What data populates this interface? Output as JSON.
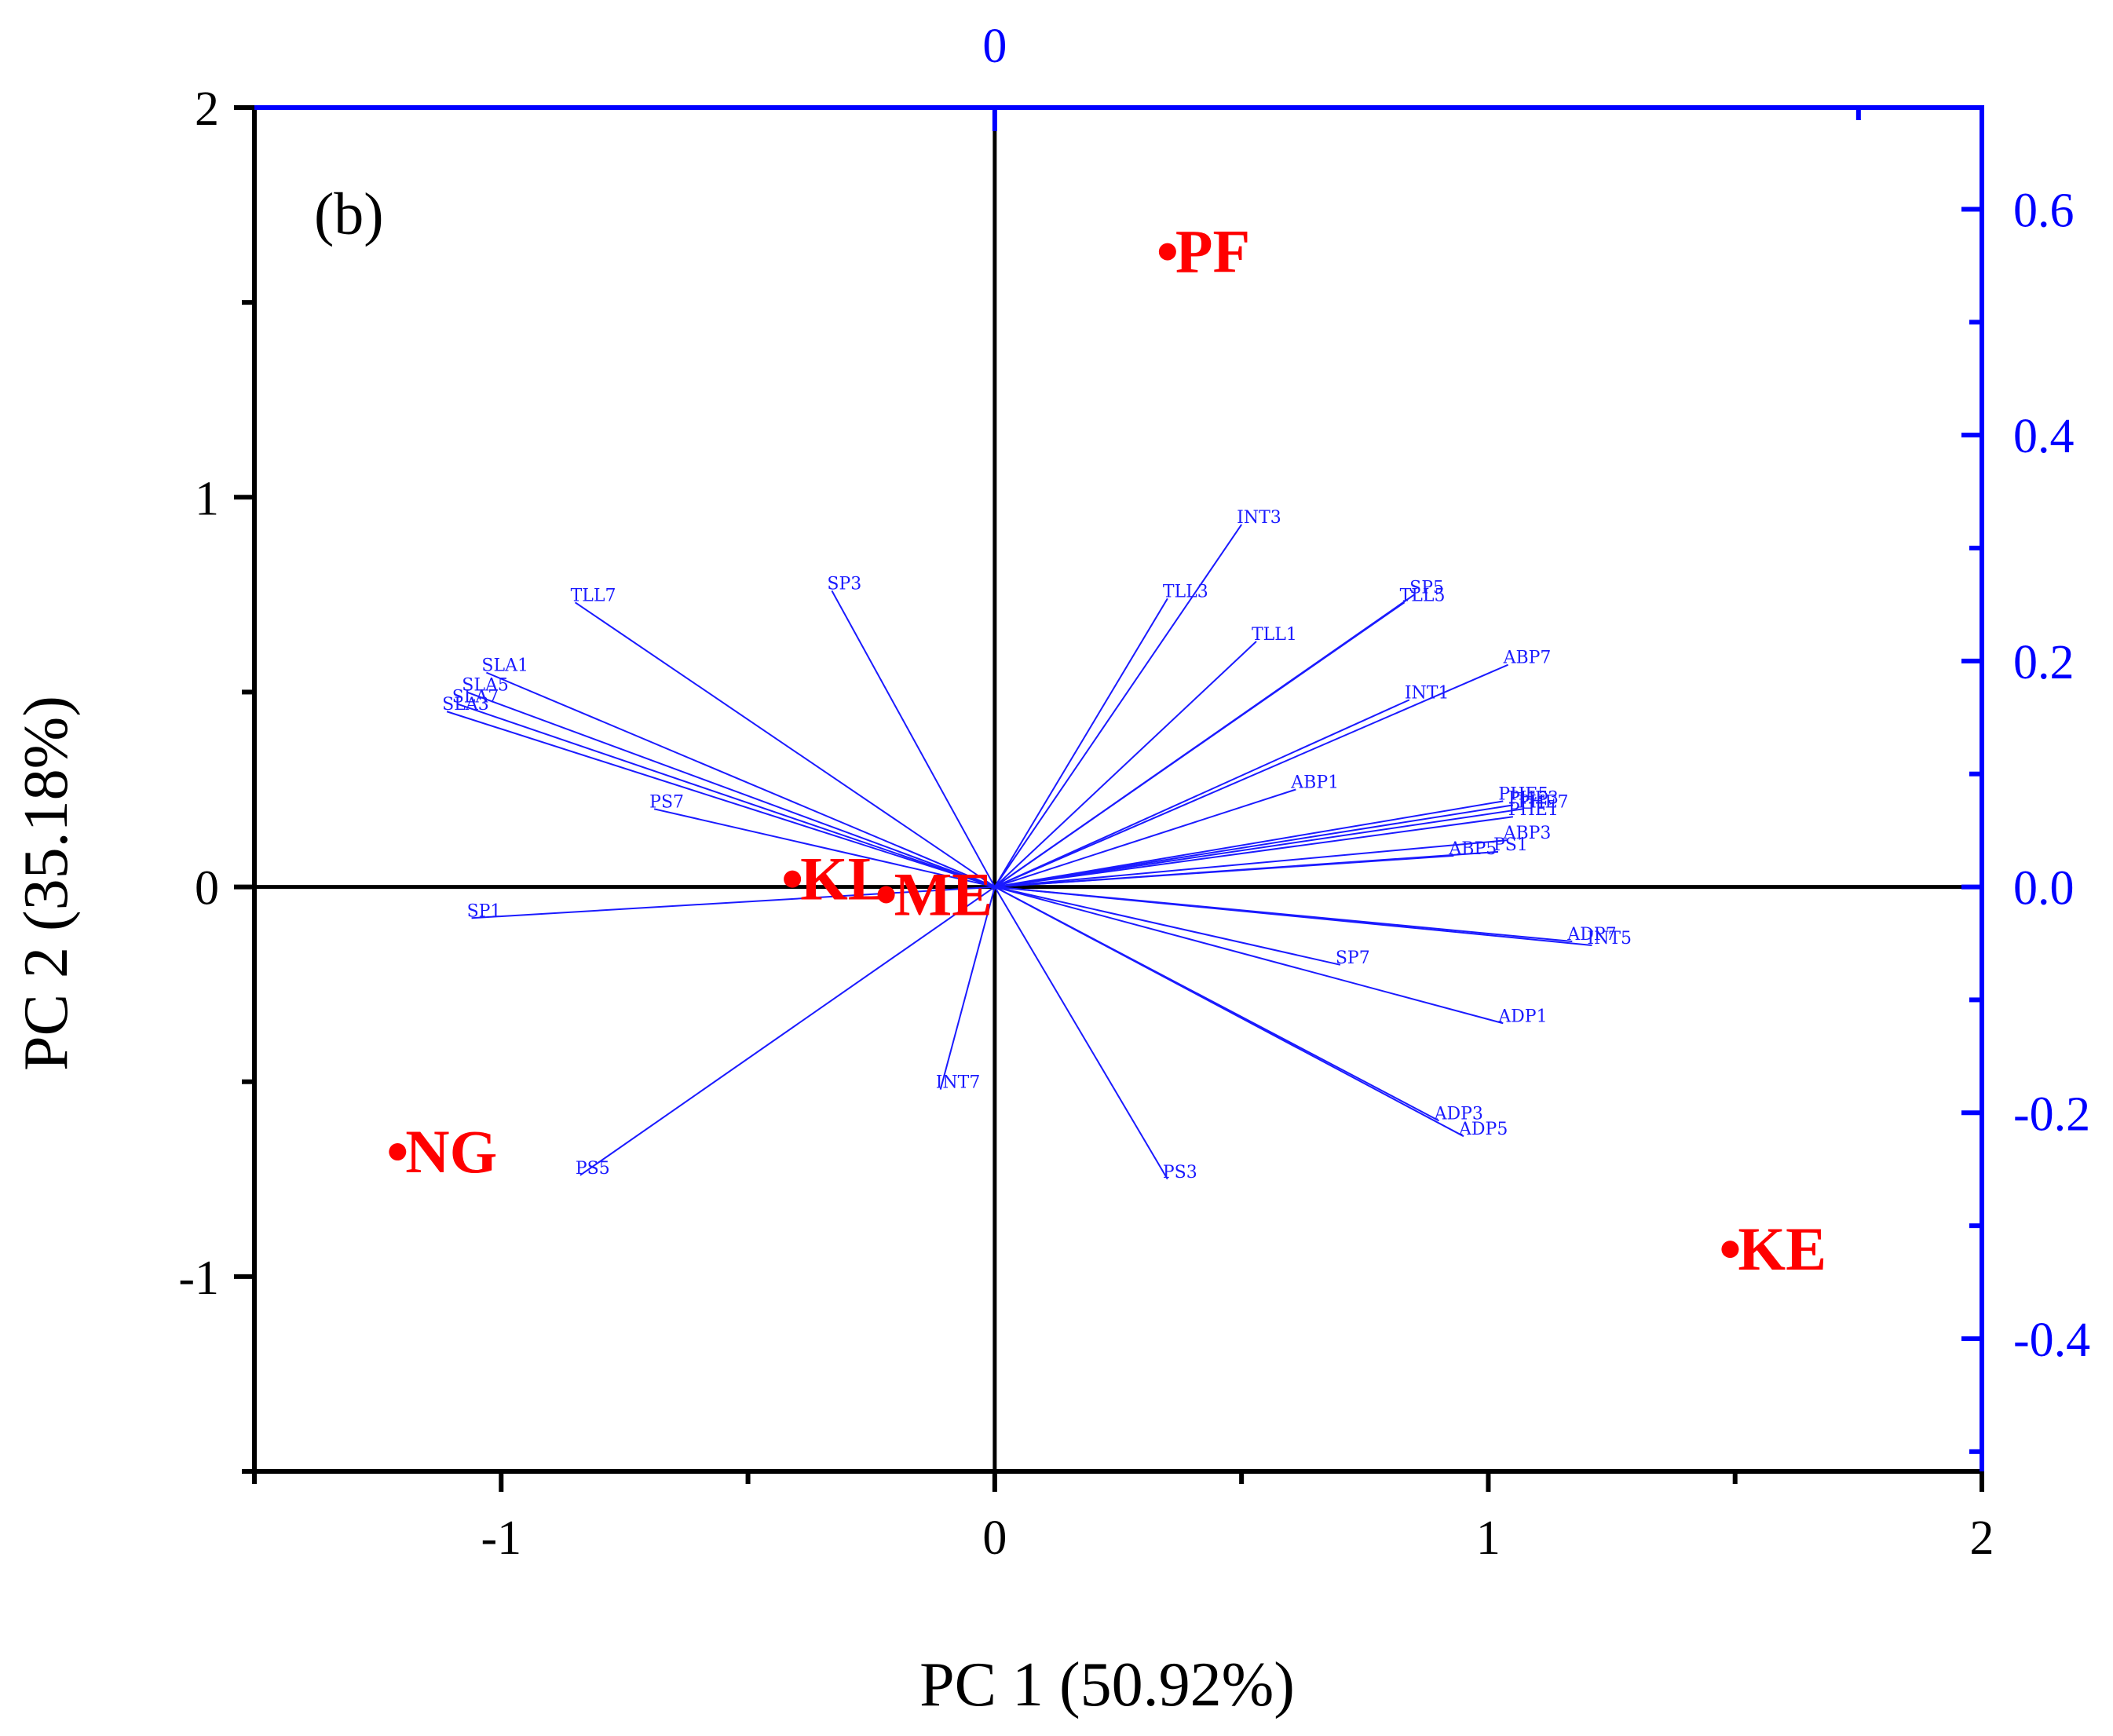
{
  "chart_data": {
    "type": "scatter",
    "subtype": "biplot",
    "panel_label": "(b)",
    "xlabel": "PC 1 (50.92%)",
    "ylabel": "PC 2 (35.18%)",
    "xlim": [
      -1.5,
      2
    ],
    "ylim": [
      -1.5,
      2
    ],
    "x_ticks": [
      -1,
      0,
      1,
      2
    ],
    "y_ticks": [
      -1,
      0,
      1,
      2
    ],
    "x_tick_labels": [
      "-1",
      "0",
      "1",
      "2"
    ],
    "y_tick_labels": [
      "-1",
      "0",
      "1",
      "2"
    ],
    "secondary_y": {
      "color": "#0000ff",
      "ticks": [
        -0.4,
        -0.2,
        0.0,
        0.2,
        0.4,
        0.6
      ],
      "tick_labels": [
        "-0.4",
        "-0.2",
        "0.0",
        "0.2",
        "0.4",
        "0.6"
      ]
    },
    "secondary_x": {
      "color": "#0000ff",
      "ticks": [
        0
      ],
      "tick_labels": [
        "0"
      ]
    },
    "scores": [
      {
        "label": "PF",
        "x": 0.35,
        "y": 1.63
      },
      {
        "label": "KL",
        "x": -0.41,
        "y": 0.02
      },
      {
        "label": "ME",
        "x": -0.22,
        "y": -0.02
      },
      {
        "label": "NG",
        "x": -1.21,
        "y": -0.68
      },
      {
        "label": "KE",
        "x": 1.49,
        "y": -0.93
      }
    ],
    "loadings": [
      {
        "label": "INT3",
        "x": 0.5,
        "y": 0.93
      },
      {
        "label": "SP3",
        "x": -0.33,
        "y": 0.76
      },
      {
        "label": "TLL3",
        "x": 0.35,
        "y": 0.74
      },
      {
        "label": "TLL7",
        "x": -0.85,
        "y": 0.73
      },
      {
        "label": "SP5",
        "x": 0.85,
        "y": 0.75
      },
      {
        "label": "TLL5",
        "x": 0.83,
        "y": 0.73
      },
      {
        "label": "TLL1",
        "x": 0.53,
        "y": 0.63
      },
      {
        "label": "ABP7",
        "x": 1.04,
        "y": 0.57
      },
      {
        "label": "SLA1",
        "x": -1.03,
        "y": 0.55
      },
      {
        "label": "SLA5",
        "x": -1.07,
        "y": 0.5
      },
      {
        "label": "SLA7",
        "x": -1.09,
        "y": 0.47
      },
      {
        "label": "SLA3",
        "x": -1.11,
        "y": 0.45
      },
      {
        "label": "INT1",
        "x": 0.84,
        "y": 0.48
      },
      {
        "label": "ABP1",
        "x": 0.61,
        "y": 0.25
      },
      {
        "label": "PS7",
        "x": -0.69,
        "y": 0.2
      },
      {
        "label": "PHE5",
        "x": 1.03,
        "y": 0.22
      },
      {
        "label": "PHE3",
        "x": 1.05,
        "y": 0.21
      },
      {
        "label": "PHE7",
        "x": 1.07,
        "y": 0.2
      },
      {
        "label": "PHE1",
        "x": 1.05,
        "y": 0.18
      },
      {
        "label": "ABP3",
        "x": 1.04,
        "y": 0.12
      },
      {
        "label": "PS1",
        "x": 1.02,
        "y": 0.09
      },
      {
        "label": "ABP5",
        "x": 0.93,
        "y": 0.08
      },
      {
        "label": "SP1",
        "x": -1.06,
        "y": -0.08
      },
      {
        "label": "ADP7",
        "x": 1.17,
        "y": -0.14
      },
      {
        "label": "INT5",
        "x": 1.21,
        "y": -0.15
      },
      {
        "label": "SP7",
        "x": 0.7,
        "y": -0.2
      },
      {
        "label": "ADP1",
        "x": 1.03,
        "y": -0.35
      },
      {
        "label": "INT7",
        "x": -0.11,
        "y": -0.52
      },
      {
        "label": "ADP3",
        "x": 0.9,
        "y": -0.6
      },
      {
        "label": "ADP5",
        "x": 0.95,
        "y": -0.64
      },
      {
        "label": "PS5",
        "x": -0.84,
        "y": -0.74
      },
      {
        "label": "PS3",
        "x": 0.35,
        "y": -0.75
      }
    ]
  }
}
